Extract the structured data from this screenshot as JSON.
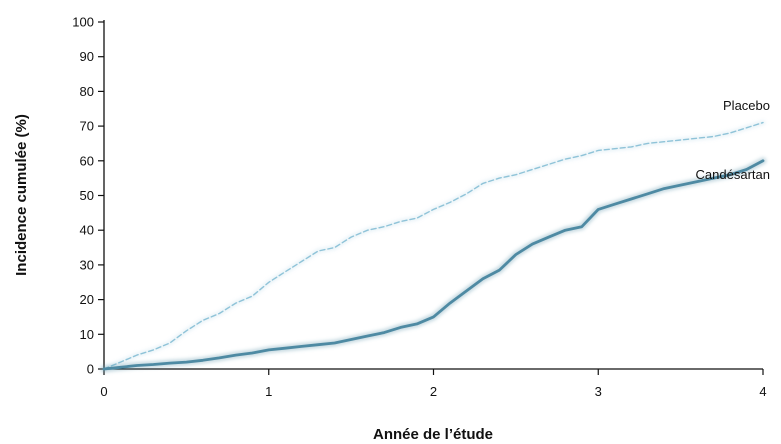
{
  "chart_data": {
    "type": "line",
    "xlabel": "Année de l’étude",
    "ylabel": "Incidence cumulée (%)",
    "xlim": [
      0,
      4
    ],
    "ylim": [
      0,
      100
    ],
    "x_ticks": [
      "0",
      "1",
      "2",
      "3",
      "4"
    ],
    "y_ticks": [
      "0",
      "10",
      "20",
      "30",
      "40",
      "50",
      "60",
      "70",
      "80",
      "90",
      "100"
    ],
    "grid": false,
    "series": [
      {
        "name": "Placebo",
        "color": "#8fc3d8",
        "style": "dashed",
        "x": [
          0,
          0.1,
          0.2,
          0.3,
          0.4,
          0.5,
          0.6,
          0.7,
          0.8,
          0.9,
          1.0,
          1.1,
          1.2,
          1.3,
          1.4,
          1.5,
          1.6,
          1.7,
          1.8,
          1.9,
          2.0,
          2.1,
          2.2,
          2.3,
          2.4,
          2.5,
          2.6,
          2.7,
          2.8,
          2.9,
          3.0,
          3.1,
          3.2,
          3.3,
          3.4,
          3.5,
          3.6,
          3.7,
          3.8,
          3.9,
          4.0
        ],
        "values": [
          0,
          2,
          4,
          5.5,
          7.5,
          11,
          14,
          16,
          19,
          21,
          25,
          28,
          31,
          34,
          35,
          38,
          40,
          41,
          42.5,
          43.5,
          46,
          48,
          50.5,
          53.5,
          55,
          56,
          57.5,
          59,
          60.5,
          61.5,
          63,
          63.5,
          64,
          65,
          65.5,
          66,
          66.5,
          67,
          68,
          69.5,
          71
        ]
      },
      {
        "name": "Candésartan",
        "color": "#4e8aa3",
        "style": "solid",
        "x": [
          0,
          0.1,
          0.2,
          0.3,
          0.4,
          0.5,
          0.6,
          0.7,
          0.8,
          0.9,
          1.0,
          1.1,
          1.2,
          1.3,
          1.4,
          1.5,
          1.6,
          1.7,
          1.8,
          1.9,
          2.0,
          2.1,
          2.2,
          2.3,
          2.4,
          2.5,
          2.6,
          2.7,
          2.8,
          2.9,
          3.0,
          3.1,
          3.2,
          3.3,
          3.4,
          3.5,
          3.6,
          3.7,
          3.8,
          3.9,
          4.0
        ],
        "values": [
          0,
          0.5,
          1,
          1.3,
          1.7,
          2,
          2.5,
          3.2,
          4,
          4.6,
          5.5,
          6,
          6.5,
          7,
          7.5,
          8.5,
          9.5,
          10.5,
          12,
          13,
          15,
          19,
          22.5,
          26,
          28.5,
          33,
          36,
          38,
          40,
          41,
          46,
          47.5,
          49,
          50.5,
          52,
          53,
          54,
          55,
          56,
          57.5,
          60
        ]
      }
    ]
  }
}
